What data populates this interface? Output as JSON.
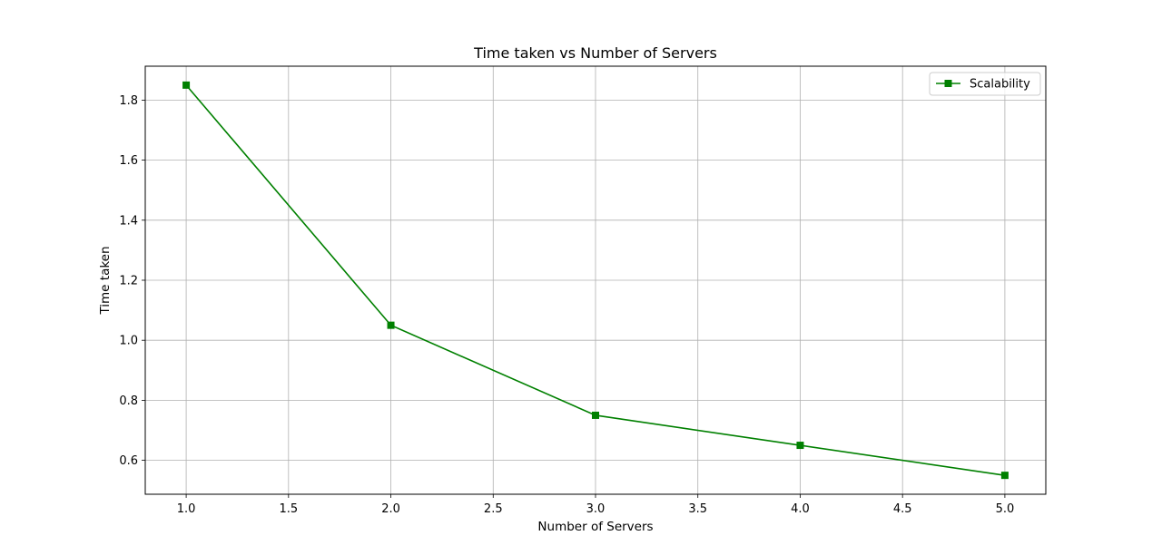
{
  "chart_data": {
    "type": "line",
    "title": "Time taken vs Number of Servers",
    "xlabel": "Number of Servers",
    "ylabel": "Time taken",
    "xlim": [
      0.8,
      5.2
    ],
    "ylim": [
      0.487,
      1.913
    ],
    "x_ticks": [
      1.0,
      1.5,
      2.0,
      2.5,
      3.0,
      3.5,
      4.0,
      4.5,
      5.0
    ],
    "x_tick_labels": [
      "1.0",
      "1.5",
      "2.0",
      "2.5",
      "3.0",
      "3.5",
      "4.0",
      "4.5",
      "5.0"
    ],
    "y_ticks": [
      0.6,
      0.8,
      1.0,
      1.2,
      1.4,
      1.6,
      1.8
    ],
    "y_tick_labels": [
      "0.6",
      "0.8",
      "1.0",
      "1.2",
      "1.4",
      "1.6",
      "1.8"
    ],
    "grid": true,
    "legend_position": "top-right",
    "series": [
      {
        "name": "Scalability",
        "color": "#008000",
        "marker": "square",
        "x": [
          1,
          2,
          3,
          4,
          5
        ],
        "y": [
          1.85,
          1.05,
          0.75,
          0.65,
          0.55
        ]
      }
    ]
  }
}
